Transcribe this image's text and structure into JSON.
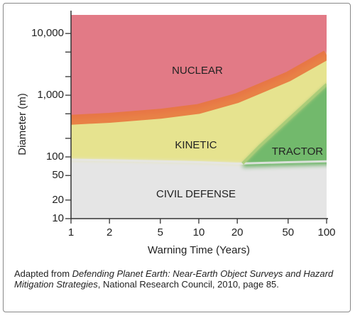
{
  "chart_data": {
    "type": "region",
    "xlabel": "Warning Time (Years)",
    "ylabel": "Diameter (m)",
    "xscale": "log",
    "yscale": "log",
    "xlim": [
      1,
      100
    ],
    "ylim": [
      10,
      20000
    ],
    "xticks": [
      1,
      2,
      5,
      10,
      20,
      50,
      100
    ],
    "yticks": [
      10,
      20,
      50,
      100,
      {
        "value": 1000,
        "label": "1,000"
      },
      {
        "value": 10000,
        "label": "10,000"
      }
    ],
    "yminor_ticks": [
      200,
      500,
      2000,
      5000
    ],
    "regions": [
      {
        "name": "NUCLEAR",
        "color": "#e27a86"
      },
      {
        "name": "KINETIC",
        "color": "#e6e38f"
      },
      {
        "name": "TRACTOR",
        "color": "#72b96c"
      },
      {
        "name": "CIVIL DEFENSE",
        "color": "#e5e5e5"
      }
    ],
    "series": [
      {
        "name": "nuclear boundary",
        "color": "#e8773e",
        "x": [
          1,
          2,
          5,
          10,
          20,
          50,
          100
        ],
        "values": [
          400,
          430,
          500,
          600,
          900,
          2000,
          4500
        ]
      },
      {
        "name": "civil defense boundary",
        "color": "#e5e5e5",
        "x": [
          1,
          2,
          5,
          10,
          20,
          50,
          100
        ],
        "values": [
          90,
          88,
          85,
          82,
          78,
          82,
          85
        ]
      },
      {
        "name": "tractor boundary",
        "color": "#a8cc78",
        "x": [
          22,
          30,
          50,
          100
        ],
        "values": [
          78,
          150,
          400,
          1500
        ]
      }
    ]
  },
  "caption": {
    "prefix": "Adapted from ",
    "title": "Defending Planet Earth: Near-Earth Object Surveys and Hazard Mitigation Strategies",
    "suffix": ", National Research Council, 2010, page 85."
  }
}
